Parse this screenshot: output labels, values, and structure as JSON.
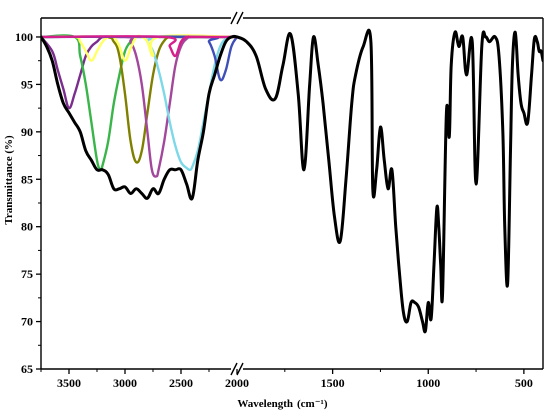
{
  "chart_data": {
    "type": "line",
    "title": "",
    "xlabel": "Wavelength",
    "xlabel_unit": "(cm⁻¹)",
    "ylabel": "Transmittance (%)",
    "xlim_left_panel": [
      3750,
      2000
    ],
    "xlim_right_panel": [
      2000,
      400
    ],
    "axis_break": true,
    "x_reversed": true,
    "ylim": [
      65,
      102
    ],
    "x_ticks": [
      3500,
      3000,
      2500,
      2000,
      1500,
      1000,
      500
    ],
    "x_tick_labels": [
      "3500",
      "3000",
      "2500",
      "2000",
      "1500",
      "1000",
      "500"
    ],
    "y_ticks": [
      65,
      70,
      75,
      80,
      85,
      90,
      95,
      100
    ],
    "y_tick_labels": [
      "65",
      "70",
      "75",
      "80",
      "85",
      "90",
      "95",
      "100"
    ],
    "grid": false,
    "legend": "none",
    "series": [
      {
        "color": "#000000",
        "x": [
          3750,
          3700,
          3650,
          3600,
          3550,
          3500,
          3450,
          3400,
          3350,
          3300,
          3250,
          3200,
          3150,
          3100,
          3050,
          3000,
          2950,
          2900,
          2850,
          2800,
          2750,
          2700,
          2650,
          2600,
          2550,
          2500,
          2450,
          2400,
          2350,
          2300,
          2250,
          2200,
          2150,
          2100,
          2050,
          2000,
          1950,
          1900,
          1850,
          1800,
          1760,
          1720,
          1680,
          1650,
          1620,
          1600,
          1575,
          1550,
          1520,
          1490,
          1460,
          1430,
          1400,
          1380,
          1340,
          1300,
          1290,
          1270,
          1250,
          1230,
          1210,
          1190,
          1170,
          1150,
          1130,
          1110,
          1090,
          1070,
          1050,
          1030,
          1015,
          1000,
          985,
          970,
          955,
          945,
          935,
          925,
          905,
          890,
          880,
          860,
          840,
          820,
          800,
          770,
          750,
          720,
          700,
          680,
          650,
          630,
          610,
          600,
          585,
          570,
          560,
          545,
          530,
          515,
          500,
          480,
          460,
          445,
          430,
          420,
          410,
          400
        ],
        "y": [
          100,
          99,
          97.5,
          95,
          93,
          92,
          91,
          90,
          88,
          87,
          86,
          86,
          85.5,
          84,
          84,
          84.2,
          83.5,
          84,
          83.5,
          83,
          84,
          83.5,
          85,
          86,
          86,
          86,
          84.5,
          83,
          87,
          90,
          94,
          96,
          98,
          99.5,
          100,
          100,
          99.5,
          98,
          94.5,
          93.5,
          97,
          100.3,
          94,
          86,
          95,
          100,
          97,
          93,
          87,
          81,
          78.5,
          85,
          93,
          96,
          99,
          99.5,
          84,
          86,
          90.5,
          87,
          84,
          86,
          80,
          75,
          71,
          70,
          72,
          72,
          71.5,
          70,
          69,
          72,
          70.3,
          76,
          82,
          80,
          76,
          73,
          92,
          89.5,
          97,
          100.5,
          99,
          100,
          96,
          99.5,
          84.5,
          99,
          100,
          99.5,
          100,
          98,
          90,
          80,
          74,
          88,
          97,
          100.5,
          96,
          93,
          92,
          91,
          96,
          99.8,
          99.5,
          98.5,
          98.5,
          97.5
        ]
      },
      {
        "color": "#7b2d8e",
        "x": [
          3750,
          3650,
          3600,
          3550,
          3500,
          3450,
          3400,
          3350,
          3300,
          3250,
          3200,
          3100,
          3000,
          2800,
          2600,
          2400,
          2200,
          2000
        ],
        "y": [
          100,
          98.5,
          96.5,
          94.5,
          92.5,
          94,
          96,
          98,
          99,
          99.5,
          100,
          100,
          100,
          100,
          100,
          100,
          100,
          100
        ]
      },
      {
        "color": "#3ab54a",
        "x": [
          3750,
          3450,
          3400,
          3350,
          3300,
          3250,
          3220,
          3200,
          3150,
          3100,
          3050,
          3000,
          2950,
          2900,
          2850,
          2800,
          2600,
          2400,
          2200,
          2000
        ],
        "y": [
          100,
          100,
          98,
          95,
          91,
          87,
          86,
          86.5,
          89,
          93,
          96,
          98.5,
          99.5,
          100,
          100,
          100,
          100,
          100,
          100,
          100
        ]
      },
      {
        "color": "#808000",
        "x": [
          3750,
          3200,
          3100,
          3050,
          3000,
          2950,
          2900,
          2850,
          2800,
          2750,
          2700,
          2650,
          2600,
          2500,
          2400,
          2200,
          2000
        ],
        "y": [
          100,
          100,
          99.5,
          98,
          94,
          89,
          86.8,
          88,
          92,
          96,
          98.5,
          99.6,
          100,
          100,
          100,
          100,
          100
        ]
      },
      {
        "color": "#a3479c",
        "x": [
          3750,
          3000,
          2950,
          2900,
          2850,
          2800,
          2760,
          2720,
          2700,
          2650,
          2600,
          2550,
          2500,
          2450,
          2400,
          2200,
          2000
        ],
        "y": [
          100,
          100,
          99.5,
          98,
          95,
          90,
          86,
          85.3,
          86,
          89,
          93,
          97,
          99,
          99.8,
          100,
          100,
          100
        ]
      },
      {
        "color": "#7dd8e8",
        "x": [
          3750,
          2850,
          2800,
          2750,
          2700,
          2650,
          2600,
          2550,
          2500,
          2450,
          2420,
          2400,
          2350,
          2300,
          2250,
          2200,
          2150,
          2100,
          2050,
          2000
        ],
        "y": [
          100,
          100,
          99.5,
          98.5,
          96.5,
          94,
          91,
          88.5,
          86.8,
          86.2,
          86,
          86.3,
          88,
          91,
          94,
          97,
          99,
          99.8,
          100,
          100
        ]
      },
      {
        "color": "#ffff66",
        "x": [
          3750,
          3450,
          3400,
          3350,
          3300,
          3250,
          3200,
          3150,
          3100,
          3050,
          3000,
          2950,
          2900,
          2850,
          2800,
          2750,
          2700,
          2000
        ],
        "y": [
          100,
          100,
          99.5,
          98.5,
          97.5,
          98.5,
          99.5,
          100,
          100,
          99,
          97.5,
          98.8,
          100,
          100,
          99.5,
          98,
          100,
          100
        ]
      },
      {
        "color": "#3f4fb8",
        "x": [
          3750,
          2300,
          2250,
          2200,
          2150,
          2100,
          2050,
          2000
        ],
        "y": [
          100,
          100,
          99.5,
          98,
          95.5,
          96.5,
          99,
          100
        ]
      },
      {
        "color": "#d61f8d",
        "x": [
          3750,
          2650,
          2600,
          2550,
          2500,
          2450,
          2400,
          2350,
          2300,
          2000
        ],
        "y": [
          100,
          100,
          99,
          98,
          99.5,
          100,
          100,
          100,
          100,
          100
        ]
      }
    ]
  }
}
